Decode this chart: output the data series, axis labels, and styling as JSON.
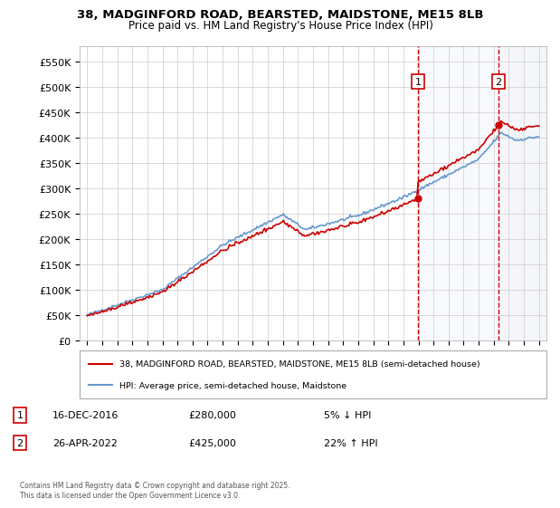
{
  "title_line1": "38, MADGINFORD ROAD, BEARSTED, MAIDSTONE, ME15 8LB",
  "title_line2": "Price paid vs. HM Land Registry's House Price Index (HPI)",
  "ylabel": "",
  "bg_color": "#f0f4ff",
  "plot_bg_color": "#ffffff",
  "grid_color": "#cccccc",
  "hpi_line_color": "#6699cc",
  "price_line_color": "#cc0000",
  "marker_color": "#cc0000",
  "dashed_line_color": "#cc0000",
  "sale1_x": 2016.96,
  "sale1_y": 280000,
  "sale2_x": 2022.32,
  "sale2_y": 425000,
  "sale1_label": "1",
  "sale2_label": "2",
  "legend_line1": "38, MADGINFORD ROAD, BEARSTED, MAIDSTONE, ME15 8LB (semi-detached house)",
  "legend_line2": "HPI: Average price, semi-detached house, Maidstone",
  "annotation1_box_label": "1",
  "annotation1_date": "16-DEC-2016",
  "annotation1_price": "£280,000",
  "annotation1_change": "5% ↓ HPI",
  "annotation2_box_label": "2",
  "annotation2_date": "26-APR-2022",
  "annotation2_price": "£425,000",
  "annotation2_change": "22% ↑ HPI",
  "footer": "Contains HM Land Registry data © Crown copyright and database right 2025.\nThis data is licensed under the Open Government Licence v3.0.",
  "ymin": 0,
  "ymax": 580000,
  "yticks": [
    0,
    50000,
    100000,
    150000,
    200000,
    250000,
    300000,
    350000,
    400000,
    450000,
    500000,
    550000
  ],
  "xmin": 1994.5,
  "xmax": 2025.5
}
